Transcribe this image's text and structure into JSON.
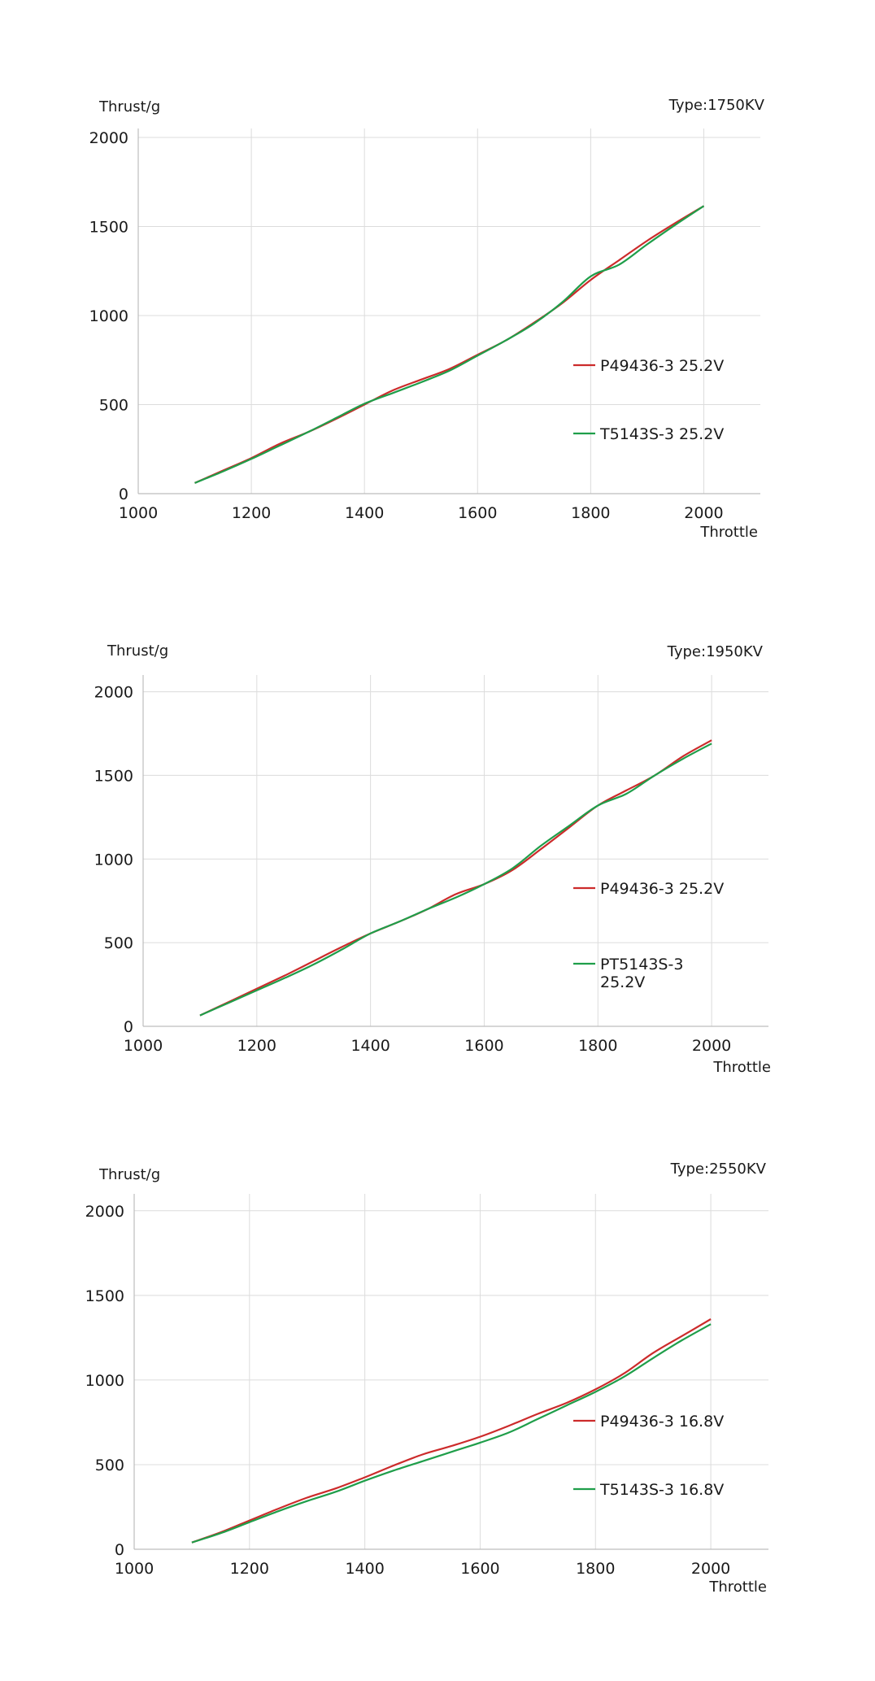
{
  "colors": {
    "red": "#cc2b2b",
    "green": "#1f9e4a",
    "grid": "#dcdcdc"
  },
  "chart_data": [
    {
      "type": "line",
      "title": "Type:1750KV",
      "ylabel": "Thrust/g",
      "xlabel": "Throttle",
      "xlim": [
        1000,
        2100
      ],
      "ylim": [
        0,
        2050
      ],
      "xticks": [
        1000,
        1200,
        1400,
        1600,
        1800,
        2000
      ],
      "yticks": [
        0,
        500,
        1000,
        1500,
        2000
      ],
      "grid": true,
      "legend_position": "right-center",
      "series": [
        {
          "name": "P49436-3 25.2V",
          "color": "#cc2b2b",
          "x": [
            1100,
            1150,
            1200,
            1250,
            1300,
            1350,
            1400,
            1450,
            1500,
            1550,
            1600,
            1650,
            1700,
            1750,
            1800,
            1850,
            1900,
            1950,
            2000
          ],
          "y": [
            60,
            130,
            200,
            280,
            345,
            420,
            500,
            580,
            640,
            700,
            780,
            860,
            960,
            1070,
            1200,
            1310,
            1420,
            1520,
            1615
          ]
        },
        {
          "name": "T5143S-3 25.2V",
          "color": "#1f9e4a",
          "x": [
            1100,
            1150,
            1200,
            1250,
            1300,
            1350,
            1400,
            1450,
            1500,
            1550,
            1600,
            1650,
            1700,
            1750,
            1800,
            1850,
            1900,
            1950,
            2000
          ],
          "y": [
            60,
            125,
            195,
            270,
            345,
            425,
            505,
            565,
            625,
            690,
            775,
            860,
            955,
            1075,
            1220,
            1285,
            1400,
            1510,
            1615
          ]
        }
      ]
    },
    {
      "type": "line",
      "title": "Type:1950KV",
      "ylabel": "Thrust/g",
      "xlabel": "Throttle",
      "xlim": [
        1000,
        2100
      ],
      "ylim": [
        0,
        2100
      ],
      "xticks": [
        1000,
        1200,
        1400,
        1600,
        1800,
        2000
      ],
      "yticks": [
        0,
        500,
        1000,
        1500,
        2000
      ],
      "grid": true,
      "legend_position": "right-center",
      "series": [
        {
          "name": "P49436-3 25.2V",
          "color": "#cc2b2b",
          "x": [
            1100,
            1150,
            1200,
            1250,
            1300,
            1350,
            1400,
            1450,
            1500,
            1550,
            1600,
            1650,
            1700,
            1750,
            1800,
            1850,
            1900,
            1950,
            2000
          ],
          "y": [
            65,
            145,
            225,
            305,
            390,
            475,
            555,
            625,
            700,
            790,
            850,
            935,
            1060,
            1190,
            1320,
            1410,
            1500,
            1615,
            1710
          ]
        },
        {
          "name": "PT5143S-3 25.2V",
          "color": "#1f9e4a",
          "x": [
            1100,
            1150,
            1200,
            1250,
            1300,
            1350,
            1400,
            1450,
            1500,
            1550,
            1600,
            1650,
            1700,
            1750,
            1800,
            1850,
            1900,
            1950,
            2000
          ],
          "y": [
            65,
            140,
            215,
            290,
            370,
            460,
            555,
            625,
            700,
            770,
            850,
            945,
            1080,
            1200,
            1320,
            1390,
            1500,
            1600,
            1690
          ]
        }
      ]
    },
    {
      "type": "line",
      "title": "Type:2550KV",
      "ylabel": "Thrust/g",
      "xlabel": "Throttle",
      "xlim": [
        1000,
        2100
      ],
      "ylim": [
        0,
        2100
      ],
      "xticks": [
        1000,
        1200,
        1400,
        1600,
        1800,
        2000
      ],
      "yticks": [
        0,
        500,
        1000,
        1500,
        2000
      ],
      "grid": true,
      "legend_position": "right-center",
      "series": [
        {
          "name": "P49436-3 16.8V",
          "color": "#cc2b2b",
          "x": [
            1100,
            1150,
            1200,
            1250,
            1300,
            1350,
            1400,
            1450,
            1500,
            1550,
            1600,
            1650,
            1700,
            1750,
            1800,
            1850,
            1900,
            1950,
            2000
          ],
          "y": [
            40,
            100,
            170,
            240,
            305,
            360,
            425,
            495,
            560,
            610,
            665,
            730,
            800,
            865,
            945,
            1040,
            1160,
            1260,
            1360
          ]
        },
        {
          "name": "T5143S-3 16.8V",
          "color": "#1f9e4a",
          "x": [
            1100,
            1150,
            1200,
            1250,
            1300,
            1350,
            1400,
            1450,
            1500,
            1550,
            1600,
            1650,
            1700,
            1750,
            1800,
            1850,
            1900,
            1950,
            2000
          ],
          "y": [
            40,
            95,
            160,
            225,
            285,
            340,
            405,
            465,
            520,
            575,
            630,
            690,
            770,
            850,
            930,
            1020,
            1130,
            1235,
            1330
          ]
        }
      ]
    }
  ]
}
